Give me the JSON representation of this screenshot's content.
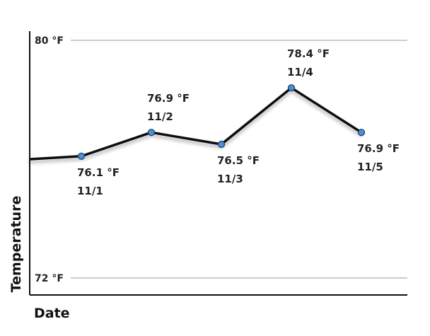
{
  "chart_data": {
    "type": "line",
    "xlabel": "Date",
    "ylabel": "Temperature",
    "ylim": [
      72,
      80
    ],
    "y_ticks": [
      {
        "value": 80,
        "label": "80 °F"
      },
      {
        "value": 72,
        "label": "72 °F"
      }
    ],
    "grid": true,
    "series_color": "#111111",
    "marker_color": "#4a90d9",
    "line_enters_from_left_at": 76.0,
    "points": [
      {
        "x": "11/1",
        "y": 76.1,
        "value_label": "76.1 °F"
      },
      {
        "x": "11/2",
        "y": 76.9,
        "value_label": "76.9 °F"
      },
      {
        "x": "11/3",
        "y": 76.5,
        "value_label": "76.5 °F"
      },
      {
        "x": "11/4",
        "y": 78.4,
        "value_label": "78.4 °F"
      },
      {
        "x": "11/5",
        "y": 76.9,
        "value_label": "76.9 °F"
      }
    ]
  }
}
